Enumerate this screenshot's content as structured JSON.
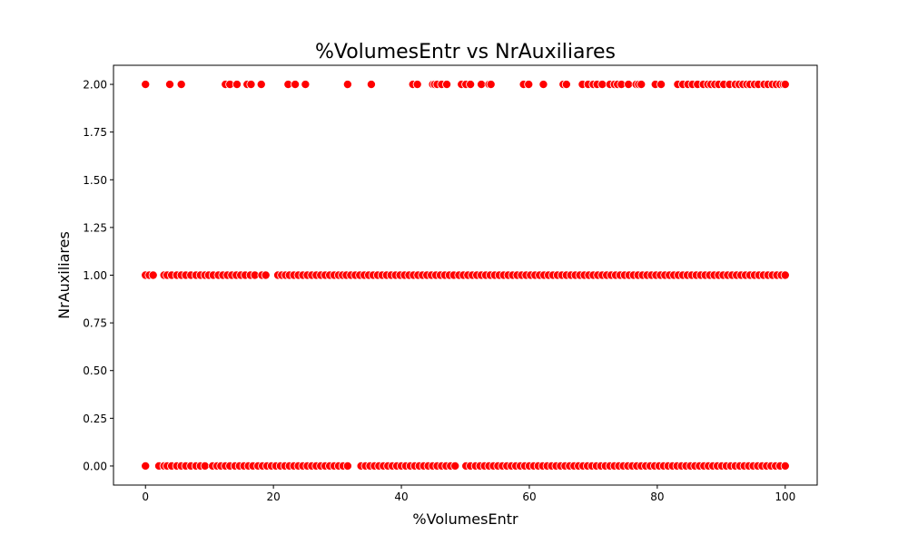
{
  "chart_data": {
    "type": "scatter",
    "title": "%VolumesEntr vs NrAuxiliares",
    "xlabel": "%VolumesEntr",
    "ylabel": "NrAuxiliares",
    "xlim": [
      -5,
      105
    ],
    "ylim": [
      -0.1,
      2.1
    ],
    "x_ticks": [
      0,
      20,
      40,
      60,
      80,
      100
    ],
    "x_tick_labels": [
      "0",
      "20",
      "40",
      "60",
      "80",
      "100"
    ],
    "y_ticks": [
      0,
      0.25,
      0.5,
      0.75,
      1.0,
      1.25,
      1.5,
      1.75,
      2.0
    ],
    "y_tick_labels": [
      "0.00",
      "0.25",
      "0.50",
      "0.75",
      "1.00",
      "1.25",
      "1.50",
      "1.75",
      "2.00"
    ],
    "grid": false,
    "legend": "none",
    "marker_color": "#ff0000",
    "marker_edge_color": "#ffffff",
    "series": [
      {
        "y_level": 2.0,
        "x": [
          0,
          3.8,
          5.6,
          12.5,
          13.2,
          14.3,
          15.9,
          16.5,
          18.1,
          22.3,
          23.4,
          25,
          31.6,
          35.3,
          41.8,
          42.5,
          44.9,
          45.2,
          45.6,
          46.3,
          47.1,
          49.4,
          50.1,
          50.8,
          52.5,
          53.7,
          54,
          59.1,
          59.9,
          62.2,
          65.3,
          65.8,
          68.3,
          69.2,
          70,
          70.6,
          71.4,
          72.6,
          73.3,
          73.8,
          74.4,
          75.5,
          76.7,
          77.1,
          77.5,
          79.7,
          80.6,
          83.2,
          84,
          84.8,
          85.5,
          86.3,
          87.2,
          87.9,
          88.4,
          89,
          89.6,
          90.4,
          91.3,
          92.2,
          92.8,
          93.4,
          94,
          94.5,
          95.2,
          95.8,
          96.7,
          97.3,
          98,
          98.6,
          99.2,
          99.7,
          100
        ]
      },
      {
        "y_level": 1.0,
        "x": [
          0,
          0.6,
          1.2,
          2.9,
          3.4,
          4.1,
          4.9,
          5.6,
          6.3,
          7.1,
          7.9,
          8.6,
          9.3,
          9.9,
          10.6,
          11.4,
          12.1,
          12.8,
          13.5,
          14.2,
          14.9,
          15.6,
          16.4,
          17.1,
          18.2,
          18.8,
          20.7,
          21.3,
          21.9,
          22.5,
          23.2,
          23.9,
          24.6,
          25.3,
          26,
          26.7,
          27.4,
          28.1,
          28.8,
          29.5,
          30.2,
          30.8,
          31.4,
          32.1,
          32.8,
          33.5,
          34.2,
          34.9,
          35.6,
          36.3,
          37,
          37.7,
          38.4,
          39.1,
          39.8,
          40.5,
          41.2,
          41.9,
          42.6,
          43.3,
          44,
          44.7,
          45.4,
          46.1,
          46.8,
          47.5,
          48.2,
          49,
          49.7,
          50.4,
          51.1,
          51.8,
          52.5,
          53.2,
          53.9,
          54.6,
          55.3,
          56,
          56.7,
          57.4,
          58.1,
          58.8,
          59.5,
          60.2,
          60.9,
          61.6,
          62.3,
          63,
          63.7,
          64.4,
          65.1,
          65.8,
          66.5,
          67.2,
          67.9,
          68.6,
          69.3,
          70,
          70.7,
          71.4,
          72.1,
          72.8,
          73.5,
          74.2,
          74.9,
          75.6,
          76.3,
          77,
          77.7,
          78.4,
          79.1,
          79.8,
          80.5,
          81.2,
          81.9,
          82.6,
          83.3,
          84,
          84.7,
          85.4,
          86.1,
          86.8,
          87.5,
          88.2,
          88.9,
          89.6,
          90.3,
          91,
          91.7,
          92.4,
          93.1,
          93.8,
          94.5,
          95.2,
          95.9,
          96.6,
          97.3,
          98,
          98.7,
          99.4,
          100
        ]
      },
      {
        "y_level": 0.0,
        "x": [
          0,
          2.1,
          2.9,
          3.4,
          4.1,
          4.9,
          5.6,
          6.3,
          7.1,
          7.9,
          8.6,
          9.3,
          10.5,
          11.2,
          11.8,
          12.5,
          13.2,
          14,
          14.7,
          15.4,
          16.1,
          16.8,
          17.6,
          18.3,
          19,
          19.7,
          20.4,
          21.1,
          21.8,
          22.5,
          23.2,
          23.9,
          24.6,
          25.3,
          26,
          26.7,
          27.4,
          28.1,
          28.8,
          29.5,
          30.2,
          30.9,
          31.6,
          33.7,
          34.4,
          35.1,
          35.8,
          36.5,
          37.2,
          37.9,
          38.6,
          39.3,
          40,
          40.7,
          41.4,
          42.1,
          42.8,
          43.5,
          44.2,
          44.9,
          45.6,
          46.3,
          47,
          47.7,
          48.4,
          50.1,
          50.8,
          51.6,
          52.3,
          53,
          53.7,
          54.4,
          55.1,
          55.8,
          56.5,
          57.2,
          57.9,
          58.6,
          59.3,
          60,
          60.7,
          61.4,
          62.1,
          62.8,
          63.5,
          64.2,
          64.9,
          65.6,
          66.3,
          67,
          67.7,
          68.4,
          69.1,
          69.8,
          70.5,
          71.2,
          71.9,
          72.6,
          73.3,
          74,
          74.7,
          75.4,
          76.1,
          76.8,
          77.5,
          78.2,
          78.9,
          79.6,
          80.3,
          81,
          81.7,
          82.4,
          83.1,
          83.8,
          84.5,
          85.2,
          85.9,
          86.6,
          87.3,
          88,
          88.7,
          89.4,
          90.1,
          90.8,
          91.5,
          92.2,
          92.9,
          93.6,
          94.3,
          95,
          95.7,
          96.4,
          97.1,
          97.8,
          98.5,
          99.2,
          100
        ]
      }
    ]
  }
}
